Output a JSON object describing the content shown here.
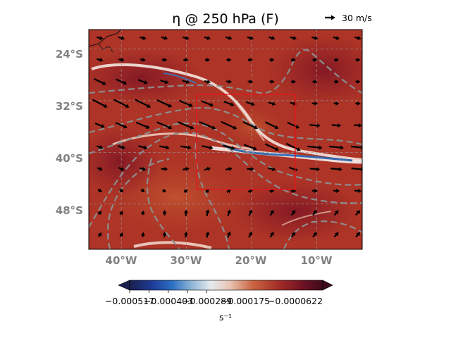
{
  "chart_data": {
    "type": "heatmap",
    "title": "η @ 250 hPa (F)",
    "quiver_key_label": "30 m/s",
    "x": {
      "range": [
        -45,
        -3
      ],
      "ticks": [
        -40,
        -30,
        -20,
        -10
      ],
      "tick_labels": [
        "40°W",
        "30°W",
        "20°W",
        "10°W"
      ]
    },
    "y": {
      "range": [
        -55,
        -21
      ],
      "ticks": [
        -24,
        -32,
        -40,
        -48
      ],
      "tick_labels": [
        "24°S",
        "32°S",
        "40°S",
        "48°S"
      ]
    },
    "colorbar": {
      "label": "s⁻¹",
      "range": [
        -0.000517,
        0.000622
      ],
      "tick_values": [
        -0.000517,
        -0.000403,
        -0.000289,
        -0.000175,
        -6.2e-05
      ],
      "tick_labels": [
        "−0.000517",
        "−0.000403",
        "−0.000289",
        "−0.000175",
        "−0.0000622"
      ],
      "extend": "both",
      "colormap": "dark navy – blue – white – red – dark maroon"
    },
    "box_region": {
      "lon": [
        -28.5,
        -13.5
      ],
      "lat": [
        -45.5,
        -31
      ]
    },
    "contour_style": "gray dashed",
    "arrow_color": "#000000",
    "box_color": "#e8141c"
  }
}
